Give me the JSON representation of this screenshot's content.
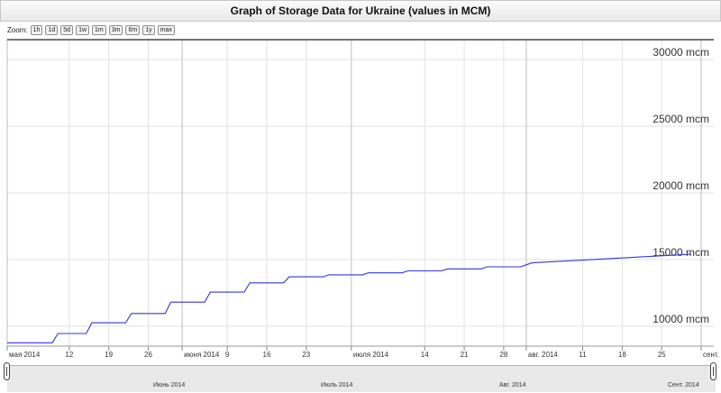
{
  "header": {
    "title": "Graph of Storage Data for Ukraine (values in MCM)"
  },
  "zoom": {
    "label": "Zoom:",
    "buttons": [
      "1h",
      "1d",
      "5d",
      "1w",
      "1m",
      "3m",
      "6m",
      "1y",
      "max"
    ]
  },
  "colors": {
    "series": "#3434e0",
    "grid": "#e2e2e2",
    "major_grid": "#bdbdbd",
    "axis": "#222222"
  },
  "chart_data": {
    "type": "line",
    "title": "Graph of Storage Data for Ukraine (values in MCM)",
    "y_unit": "mcm",
    "ylim": [
      8500,
      31500
    ],
    "xlim": [
      "2014-05-01",
      "2014-09-01"
    ],
    "y_ticks": [
      {
        "value": 10000,
        "label": "10000 mcm"
      },
      {
        "value": 15000,
        "label": "15000 mcm"
      },
      {
        "value": 20000,
        "label": "20000 mcm"
      },
      {
        "value": 25000,
        "label": "25000 mcm"
      },
      {
        "value": 30000,
        "label": "30000 mcm"
      }
    ],
    "x_ticks": [
      {
        "date": "2014-05-01",
        "label": "мая 2014",
        "major": true
      },
      {
        "date": "2014-05-12",
        "label": "12",
        "major": false
      },
      {
        "date": "2014-05-19",
        "label": "19",
        "major": false
      },
      {
        "date": "2014-05-26",
        "label": "26",
        "major": false
      },
      {
        "date": "2014-06-01",
        "label": "июня 2014",
        "major": true
      },
      {
        "date": "2014-06-09",
        "label": "9",
        "major": false
      },
      {
        "date": "2014-06-16",
        "label": "16",
        "major": false
      },
      {
        "date": "2014-06-23",
        "label": "23",
        "major": false
      },
      {
        "date": "2014-07-01",
        "label": "июля 2014",
        "major": true
      },
      {
        "date": "2014-07-14",
        "label": "14",
        "major": false
      },
      {
        "date": "2014-07-21",
        "label": "21",
        "major": false
      },
      {
        "date": "2014-07-28",
        "label": "28",
        "major": false
      },
      {
        "date": "2014-08-01",
        "label": "авг. 2014",
        "major": true
      },
      {
        "date": "2014-08-11",
        "label": "11",
        "major": false
      },
      {
        "date": "2014-08-18",
        "label": "18",
        "major": false
      },
      {
        "date": "2014-08-25",
        "label": "25",
        "major": false
      },
      {
        "date": "2014-09-01",
        "label": "сент.",
        "major": true
      }
    ],
    "series": [
      {
        "x": [
          "2014-05-01",
          "2014-05-09",
          "2014-05-10",
          "2014-05-15",
          "2014-05-16",
          "2014-05-22",
          "2014-05-23",
          "2014-05-29",
          "2014-05-30",
          "2014-06-05",
          "2014-06-06",
          "2014-06-12",
          "2014-06-13",
          "2014-06-19",
          "2014-06-20",
          "2014-06-26",
          "2014-06-27",
          "2014-07-03",
          "2014-07-04",
          "2014-07-10",
          "2014-07-11",
          "2014-07-17",
          "2014-07-18",
          "2014-07-24",
          "2014-07-25",
          "2014-07-31",
          "2014-08-01",
          "2014-08-02",
          "2014-08-30"
        ],
        "y": [
          8750,
          8750,
          9450,
          9450,
          10250,
          10250,
          10950,
          10950,
          11800,
          11800,
          12550,
          12550,
          13250,
          13250,
          13700,
          13700,
          13850,
          13850,
          14000,
          14000,
          14150,
          14150,
          14300,
          14300,
          14450,
          14450,
          14600,
          14750,
          15400
        ]
      }
    ],
    "navigator": {
      "months": [
        "Июнь 2014",
        "Июль 2014",
        "Авг. 2014",
        "Сент. 2014"
      ]
    }
  }
}
